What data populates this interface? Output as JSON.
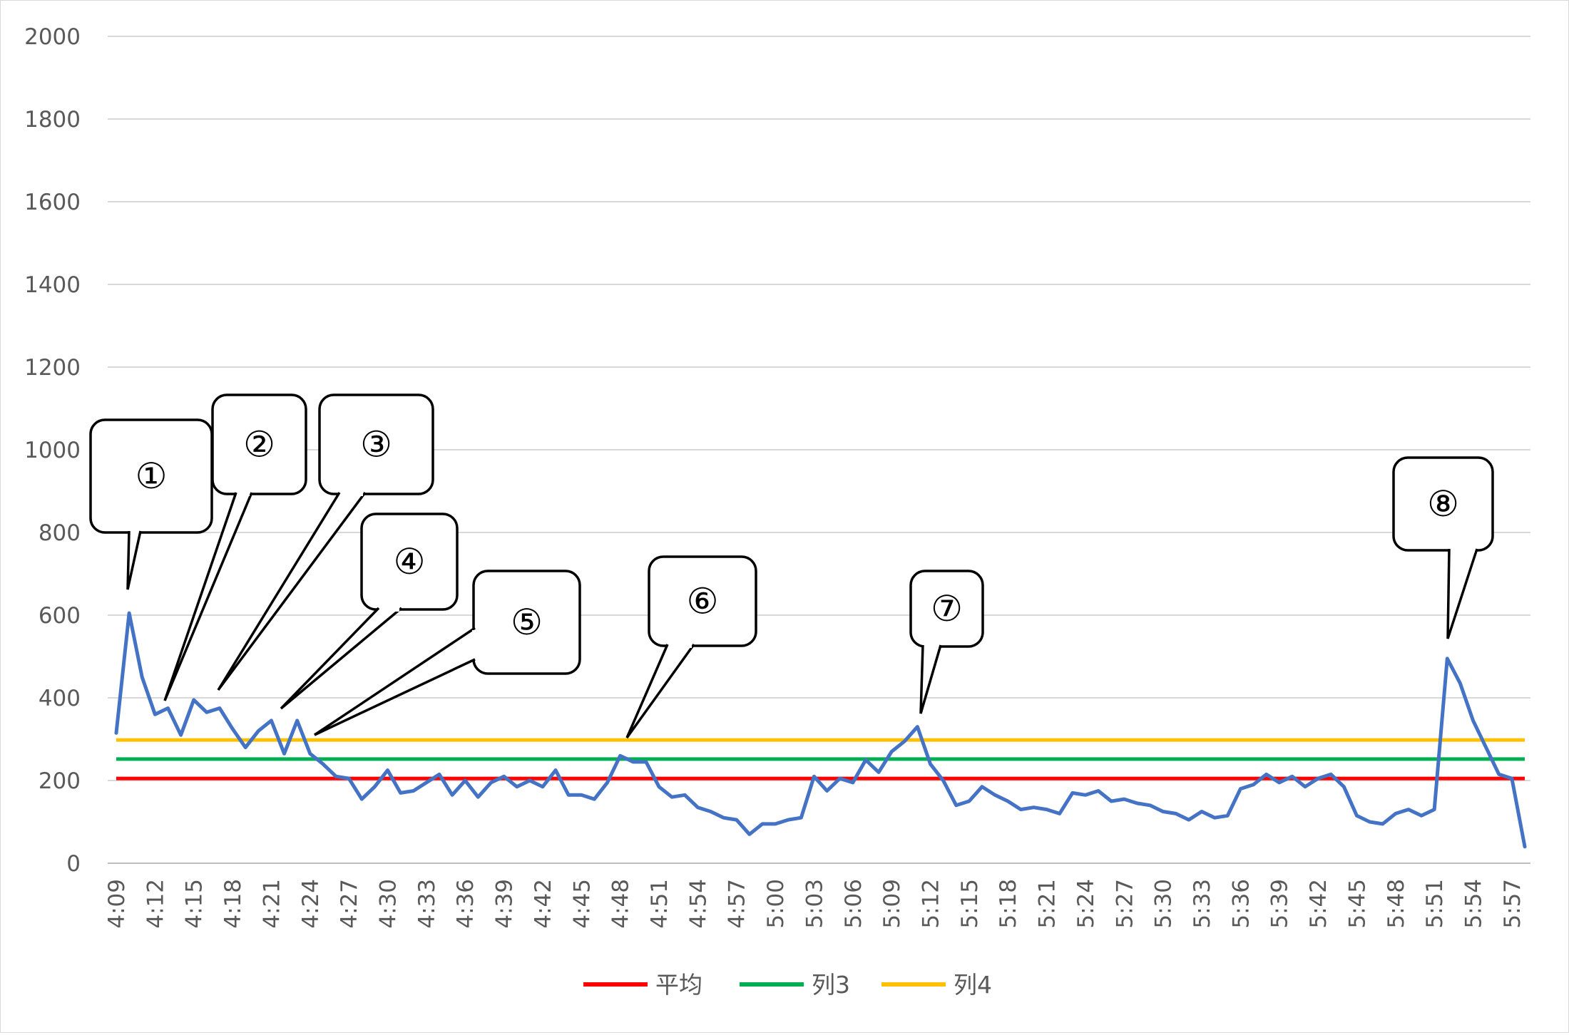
{
  "chart_data": {
    "type": "line",
    "title": "",
    "xlabel": "",
    "ylabel": "",
    "ylim": [
      0,
      2000
    ],
    "yticks": [
      0,
      200,
      400,
      600,
      800,
      1000,
      1200,
      1400,
      1600,
      1800,
      2000
    ],
    "grid": "horizontal",
    "legend_position": "bottom",
    "x_start": "4:09",
    "x_interval_minutes": 1,
    "xtick_labels": [
      "4:09",
      "4:12",
      "4:15",
      "4:18",
      "4:21",
      "4:24",
      "4:27",
      "4:30",
      "4:33",
      "4:36",
      "4:39",
      "4:42",
      "4:45",
      "4:48",
      "4:51",
      "4:54",
      "4:57",
      "5:00",
      "5:03",
      "5:06",
      "5:09",
      "5:12",
      "5:15",
      "5:18",
      "5:21",
      "5:24",
      "5:27",
      "5:30",
      "5:33",
      "5:36",
      "5:39",
      "5:42",
      "5:45",
      "5:48",
      "5:51",
      "5:54",
      "5:57"
    ],
    "series": [
      {
        "color": "#4472c4",
        "values": [
          315,
          605,
          450,
          360,
          375,
          310,
          395,
          365,
          375,
          325,
          280,
          320,
          345,
          265,
          345,
          265,
          240,
          210,
          205,
          155,
          185,
          225,
          170,
          175,
          195,
          215,
          165,
          200,
          160,
          195,
          210,
          185,
          200,
          185,
          225,
          165,
          165,
          155,
          195,
          260,
          245,
          245,
          185,
          160,
          165,
          135,
          125,
          110,
          105,
          70,
          95,
          95,
          105,
          110,
          210,
          175,
          205,
          195,
          250,
          220,
          270,
          295,
          330,
          240,
          200,
          140,
          150,
          185,
          165,
          150,
          130,
          135,
          130,
          120,
          170,
          165,
          175,
          150,
          155,
          145,
          140,
          125,
          120,
          105,
          125,
          110,
          115,
          180,
          190,
          215,
          195,
          210,
          185,
          205,
          215,
          185,
          115,
          100,
          95,
          120,
          130,
          115,
          130,
          495,
          435,
          345,
          280,
          215,
          205,
          40
        ]
      },
      {
        "name": "平均",
        "color": "#ff0000",
        "constant": 205
      },
      {
        "name": "列3",
        "color": "#00b050",
        "constant": 252
      },
      {
        "name": "列4",
        "color": "#ffc000",
        "constant": 298
      }
    ],
    "annotations": [
      {
        "label": "①",
        "time": "4:10",
        "value": 605
      },
      {
        "label": "②",
        "time": "4:13",
        "value": 375
      },
      {
        "label": "③",
        "time": "4:17",
        "value": 375
      },
      {
        "label": "④",
        "time": "4:21",
        "value": 345
      },
      {
        "label": "⑤",
        "time": "4:24",
        "value": 265
      },
      {
        "label": "⑥",
        "time": "4:48",
        "value": 260
      },
      {
        "label": "⑦",
        "time": "5:11",
        "value": 330
      },
      {
        "label": "⑧",
        "time": "5:52",
        "value": 495
      }
    ]
  }
}
